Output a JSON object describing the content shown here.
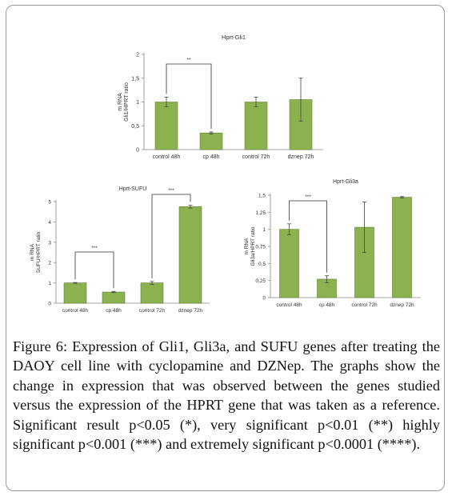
{
  "figure": {
    "label": "Figure 6:",
    "caption": "Expression of Gli1, Gli3a, and SUFU genes after treating the DAOY cell line with cyclopamine and DZNep. The graphs show the change in expression that was observed between the genes studied versus the expression of the HPRT gene that was taken as a reference. Significant result p<0.05 (*), very significant p<0.01 (**) highly significant p<0.001 (***) and extremely significant p<0.0001 (****)."
  },
  "colors": {
    "bar": "#8cb24f",
    "bar_stroke": "#5c7f2c",
    "axis": "#888888"
  },
  "chart_data": [
    {
      "type": "bar",
      "title": "Hprt-Gli1",
      "ylabel": "m RNA\nGli1/HPRT ratio",
      "categories": [
        "control 48h",
        "cp 48h",
        "control 72h",
        "dznep 72h"
      ],
      "values": [
        1.0,
        0.35,
        1.0,
        1.05
      ],
      "errors": [
        0.1,
        0.02,
        0.1,
        0.45
      ],
      "ylim": [
        0,
        2
      ],
      "yticks": [
        "0",
        "0,5",
        "1",
        "1,5",
        "2"
      ],
      "significance": [
        {
          "from": 0,
          "to": 1,
          "label": "**"
        }
      ]
    },
    {
      "type": "bar",
      "title": "Hprt-SUFU",
      "ylabel": "m RNA\nSUFU/HPRT ratio",
      "categories": [
        "control 48h",
        "cp 48h",
        "control 72h",
        "dznep 72h"
      ],
      "values": [
        1.0,
        0.55,
        1.0,
        4.75
      ],
      "errors": [
        0.02,
        0.03,
        0.07,
        0.07
      ],
      "ylim": [
        0,
        5
      ],
      "yticks": [
        "0",
        "1",
        "2",
        "3",
        "4",
        "5"
      ],
      "significance": [
        {
          "from": 0,
          "to": 1,
          "label": "***"
        },
        {
          "from": 2,
          "to": 3,
          "label": "***"
        }
      ]
    },
    {
      "type": "bar",
      "title": "Hprt-Gli3a",
      "ylabel": "m RNA\nGli3a/HPRT ratio",
      "categories": [
        "control 48h",
        "cp 48h",
        "control 72h",
        "dznep 72h"
      ],
      "values": [
        1.0,
        0.27,
        1.03,
        1.47
      ],
      "errors": [
        0.08,
        0.05,
        0.37,
        0.01
      ],
      "ylim": [
        0,
        1.5
      ],
      "yticks": [
        "0",
        "0,25",
        "0,5",
        "0,75",
        "1",
        "1,25",
        "1,5"
      ],
      "significance": [
        {
          "from": 0,
          "to": 1,
          "label": "***"
        }
      ]
    }
  ]
}
